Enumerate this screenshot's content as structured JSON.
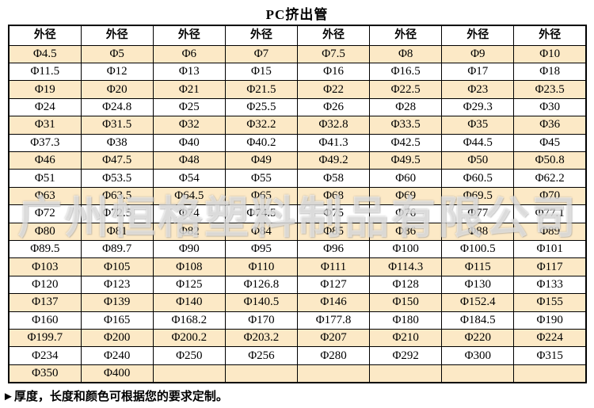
{
  "title": "PC挤出管",
  "table": {
    "header_labels": [
      "外径",
      "外径",
      "外径",
      "外径",
      "外径",
      "外径",
      "外径",
      "外径"
    ],
    "rows": [
      [
        "Φ4.5",
        "Φ5",
        "Φ6",
        "Φ7",
        "Φ7.5",
        "Φ8",
        "Φ9",
        "Φ10"
      ],
      [
        "Φ11.5",
        "Φ12",
        "Φ13",
        "Φ15",
        "Φ16",
        "Φ16.5",
        "Φ17",
        "Φ18"
      ],
      [
        "Φ19",
        "Φ20",
        "Φ21",
        "Φ21.5",
        "Φ22",
        "Φ22.5",
        "Φ23",
        "Φ23.5"
      ],
      [
        "Φ24",
        "Φ24.8",
        "Φ25",
        "Φ25.5",
        "Φ26",
        "Φ28",
        "Φ29.3",
        "Φ30"
      ],
      [
        "Φ31",
        "Φ31.5",
        "Φ32",
        "Φ32.2",
        "Φ32.8",
        "Φ33.5",
        "Φ35",
        "Φ36"
      ],
      [
        "Φ37.3",
        "Φ38",
        "Φ40",
        "Φ40.2",
        "Φ41.3",
        "Φ42.5",
        "Φ44.5",
        "Φ45"
      ],
      [
        "Φ46",
        "Φ47.5",
        "Φ48",
        "Φ49",
        "Φ49.2",
        "Φ49.5",
        "Φ50",
        "Φ50.8"
      ],
      [
        "Φ51",
        "Φ53.5",
        "Φ54",
        "Φ55",
        "Φ58",
        "Φ60",
        "Φ60.5",
        "Φ62.2"
      ],
      [
        "Φ63",
        "Φ63.5",
        "Φ64.5",
        "Φ65",
        "Φ68",
        "Φ69",
        "Φ69.5",
        "Φ70"
      ],
      [
        "Φ72",
        "Φ72.5",
        "Φ74",
        "Φ74.5",
        "Φ75",
        "Φ76",
        "Φ77",
        "Φ77.1"
      ],
      [
        "Φ80",
        "Φ81",
        "Φ82",
        "Φ84",
        "Φ85",
        "Φ86",
        "Φ88",
        "Φ89"
      ],
      [
        "Φ89.5",
        "Φ89.7",
        "Φ90",
        "Φ95",
        "Φ96",
        "Φ100",
        "Φ100.5",
        "Φ101"
      ],
      [
        "Φ103",
        "Φ105",
        "Φ108",
        "Φ110",
        "Φ111",
        "Φ114.3",
        "Φ115",
        "Φ117"
      ],
      [
        "Φ120",
        "Φ123",
        "Φ125",
        "Φ126.8",
        "Φ127",
        "Φ128",
        "Φ130",
        "Φ133"
      ],
      [
        "Φ137",
        "Φ139",
        "Φ140",
        "Φ140.5",
        "Φ146",
        "Φ150",
        "Φ152.4",
        "Φ155"
      ],
      [
        "Φ160",
        "Φ165",
        "Φ168.2",
        "Φ170",
        "Φ177.8",
        "Φ180",
        "Φ184.5",
        "Φ190"
      ],
      [
        "Φ199.7",
        "Φ200",
        "Φ200.2",
        "Φ203.2",
        "Φ207",
        "Φ210",
        "Φ220",
        "Φ224"
      ],
      [
        "Φ234",
        "Φ240",
        "Φ250",
        "Φ256",
        "Φ280",
        "Φ292",
        "Φ300",
        "Φ315"
      ],
      [
        "Φ350",
        "Φ400",
        "",
        "",
        "",
        "",
        "",
        ""
      ]
    ]
  },
  "watermark": "广州恒格塑料制品有限公司",
  "footer_note": "►厚度，长度和颜色可根据您的要求定制。",
  "colors": {
    "row_shade": "#FCE9C6",
    "row_plain": "#FFFFFF",
    "border": "#000000",
    "text": "#000000"
  }
}
